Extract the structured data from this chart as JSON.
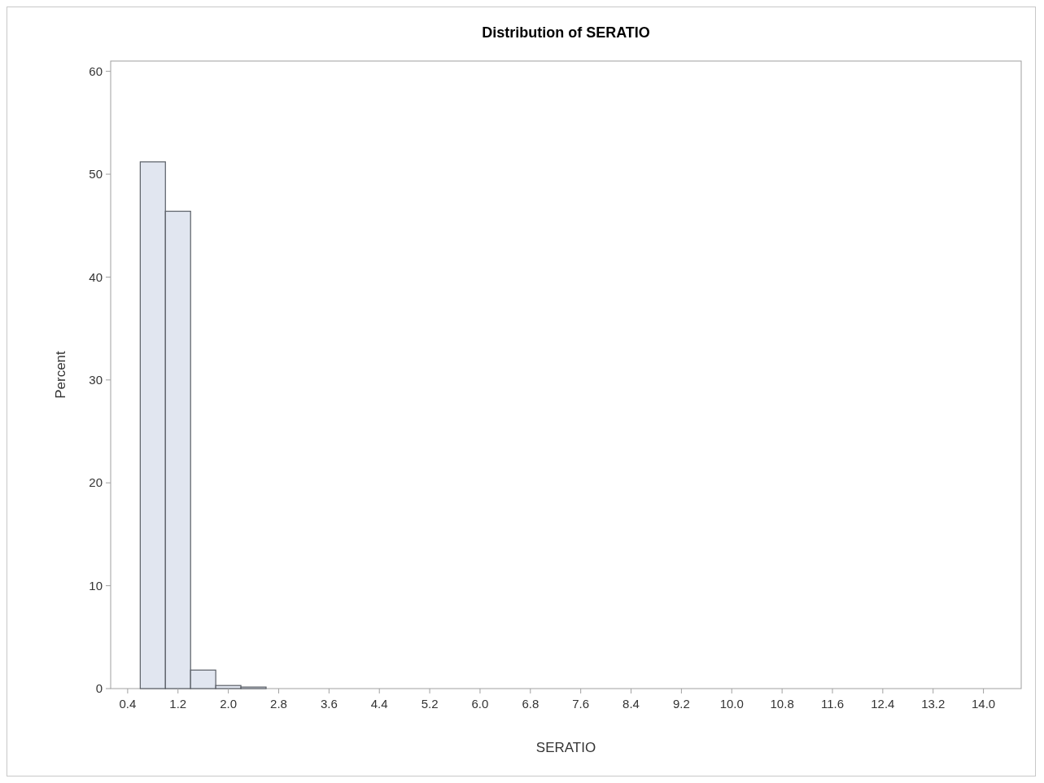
{
  "chart_data": {
    "type": "histogram",
    "title": "Distribution of SERATIO",
    "xlabel": "SERATIO",
    "ylabel": "Percent",
    "bins": [
      0.6,
      1.0,
      1.4,
      1.8,
      2.2,
      2.6
    ],
    "values": [
      51.2,
      46.4,
      1.8,
      0.3,
      0.15
    ],
    "color": "#e1e6f0",
    "xlim": [
      0.13,
      14.6
    ],
    "xticks": [
      0.4,
      1.2,
      {
        "value": 2,
        "label": "2.0"
      },
      2.8,
      3.6,
      4.4,
      5.2,
      {
        "value": 6,
        "label": "6.0"
      },
      6.8,
      7.6,
      8.4,
      9.2,
      {
        "value": 10,
        "label": "10.0"
      },
      10.8,
      11.6,
      12.4,
      13.2,
      {
        "value": 14,
        "label": "14.0"
      }
    ],
    "ylim": [
      0,
      61
    ],
    "yticks": [
      0,
      10,
      20,
      30,
      40,
      50,
      60
    ],
    "grid": false
  }
}
